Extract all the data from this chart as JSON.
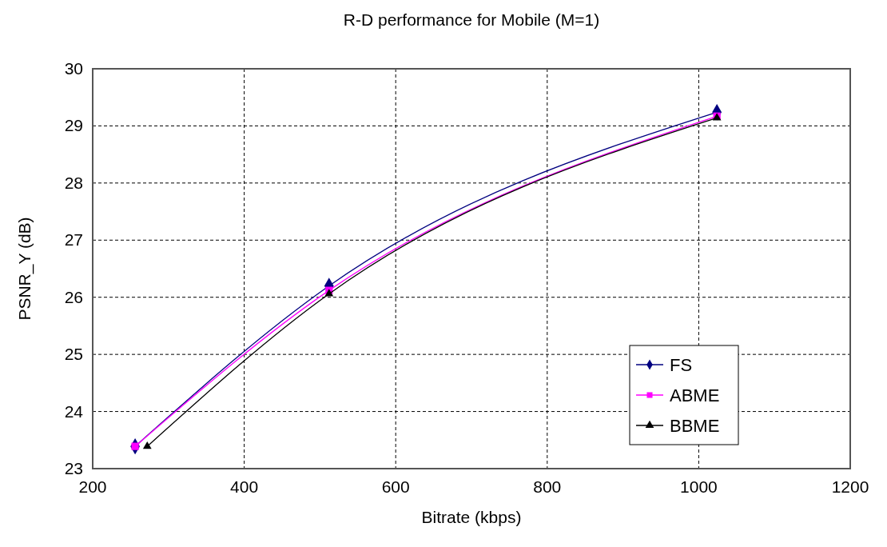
{
  "chart_data": {
    "type": "line",
    "title": "R-D performance for Mobile (M=1)",
    "xlabel": "Bitrate (kbps)",
    "ylabel": "PSNR_Y (dB)",
    "xlim": [
      200,
      1200
    ],
    "xticks": [
      200,
      400,
      600,
      800,
      1000,
      1200
    ],
    "ylim": [
      23,
      30
    ],
    "yticks": [
      23,
      24,
      25,
      26,
      27,
      28,
      29,
      30
    ],
    "grid": true,
    "legend": "bottom right",
    "series": [
      {
        "name": "FS",
        "color": "#000080",
        "marker": "diamond",
        "x": [
          256,
          512,
          1024
        ],
        "values": [
          23.39,
          26.2,
          29.24
        ]
      },
      {
        "name": "ABME",
        "color": "#ff00ff",
        "marker": "square",
        "x": [
          256,
          512,
          1024
        ],
        "values": [
          23.39,
          26.12,
          29.17
        ]
      },
      {
        "name": "BBME",
        "color": "#000000",
        "marker": "triangle",
        "x": [
          272,
          512,
          1024
        ],
        "values": [
          23.39,
          26.06,
          29.14
        ]
      }
    ]
  }
}
